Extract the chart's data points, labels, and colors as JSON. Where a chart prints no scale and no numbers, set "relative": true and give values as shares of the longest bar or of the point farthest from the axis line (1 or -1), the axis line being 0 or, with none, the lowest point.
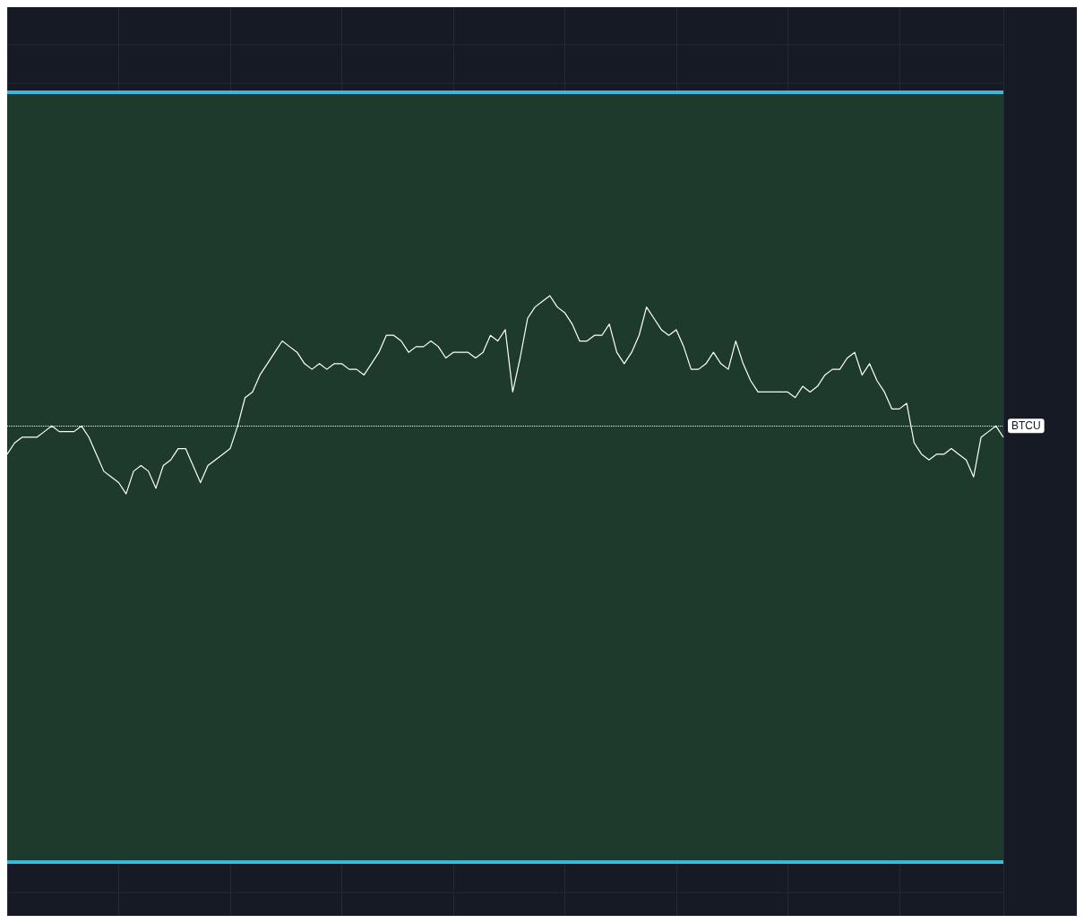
{
  "chart_data": {
    "type": "line",
    "relative": true,
    "grid": true,
    "line_style": "solid",
    "categories": [
      null,
      null,
      null,
      null,
      null,
      null,
      null,
      null,
      null,
      null,
      null,
      null,
      null,
      null,
      null,
      null,
      null,
      null,
      null,
      null,
      null,
      null,
      null,
      null,
      null,
      null,
      null,
      null,
      null,
      null,
      null,
      null,
      null,
      null,
      null,
      null,
      null,
      null,
      null,
      null,
      null,
      null,
      null,
      null,
      null,
      null,
      null,
      null,
      null,
      null,
      null,
      null,
      null,
      null,
      null,
      null,
      null,
      null,
      null,
      null,
      null,
      null,
      null,
      null,
      null,
      null,
      null,
      null,
      null,
      null,
      null,
      null,
      null,
      null,
      null,
      null,
      null,
      null,
      null,
      null,
      null,
      null,
      null,
      null,
      null,
      null,
      null,
      null,
      null,
      null,
      null,
      null,
      null,
      null,
      null,
      null,
      null,
      null,
      null,
      null,
      null,
      null,
      null,
      null,
      null,
      null,
      null,
      null,
      null,
      null,
      null,
      null,
      null,
      null,
      null,
      null,
      null,
      null,
      null,
      null,
      null,
      null,
      null,
      null,
      null,
      null,
      null,
      null,
      null,
      null,
      null,
      null,
      null,
      null,
      null
    ],
    "series": [
      {
        "color": "#ffffff",
        "values": [
          0.72,
          0.74,
          0.75,
          0.75,
          0.75,
          0.76,
          0.77,
          0.76,
          0.76,
          0.76,
          0.77,
          0.75,
          0.72,
          0.69,
          0.68,
          0.67,
          0.65,
          0.69,
          0.7,
          0.69,
          0.66,
          0.7,
          0.71,
          0.73,
          0.73,
          0.7,
          0.67,
          0.7,
          0.71,
          0.72,
          0.73,
          0.77,
          0.82,
          0.83,
          0.86,
          0.88,
          0.9,
          0.92,
          0.91,
          0.9,
          0.88,
          0.87,
          0.88,
          0.87,
          0.88,
          0.88,
          0.87,
          0.87,
          0.86,
          0.88,
          0.9,
          0.93,
          0.93,
          0.92,
          0.9,
          0.91,
          0.91,
          0.92,
          0.91,
          0.89,
          0.9,
          0.9,
          0.9,
          0.89,
          0.9,
          0.93,
          0.92,
          0.94,
          0.83,
          0.89,
          0.96,
          0.98,
          0.99,
          1,
          0.98,
          0.97,
          0.95,
          0.92,
          0.92,
          0.93,
          0.93,
          0.95,
          0.9,
          0.88,
          0.9,
          0.93,
          0.98,
          0.96,
          0.94,
          0.93,
          0.94,
          0.91,
          0.87,
          0.87,
          0.88,
          0.9,
          0.88,
          0.87,
          0.92,
          0.88,
          0.85,
          0.83,
          0.83,
          0.83,
          0.83,
          0.83,
          0.82,
          0.84,
          0.83,
          0.84,
          0.86,
          0.87,
          0.87,
          0.89,
          0.9,
          0.86,
          0.88,
          0.85,
          0.83,
          0.8,
          0.8,
          0.81,
          0.74,
          0.72,
          0.71,
          0.72,
          0.72,
          0.73,
          0.72,
          0.71,
          0.68,
          0.75,
          0.76,
          0.77,
          0.75
        ]
      }
    ],
    "ref_lines": [
      {
        "axis": "y",
        "value": 0.77,
        "label": "BTCU",
        "color": "#ffffff",
        "line_style": "dotted"
      }
    ],
    "bands": [
      {
        "axis": "y",
        "from": 0,
        "to": 1.36,
        "color": "#1d3a2c"
      }
    ]
  }
}
